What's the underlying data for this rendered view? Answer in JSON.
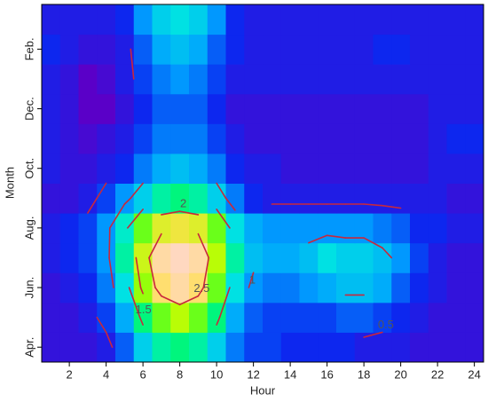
{
  "chart_data": {
    "type": "heatmap",
    "x_label": "Hour",
    "y_label": "Month",
    "x": [
      1,
      2,
      3,
      4,
      5,
      6,
      7,
      8,
      9,
      10,
      11,
      12,
      13,
      14,
      15,
      16,
      17,
      18,
      19,
      20,
      21,
      22,
      23,
      24
    ],
    "xlim": [
      0.5,
      24.5
    ],
    "xticks": [
      2,
      4,
      6,
      8,
      10,
      12,
      14,
      16,
      18,
      20,
      22,
      24
    ],
    "categories": [
      "Apr.",
      null,
      "Jun.",
      null,
      "Aug.",
      null,
      "Oct.",
      null,
      "Dec.",
      null,
      "Feb.",
      null
    ],
    "values": [
      [
        0.3,
        0.3,
        0.3,
        0.4,
        0.7,
        1.2,
        1.5,
        1.6,
        1.5,
        1.2,
        0.8,
        0.6,
        0.6,
        0.5,
        0.5,
        0.5,
        0.5,
        0.4,
        0.4,
        0.4,
        0.3,
        0.3,
        0.3,
        0.3
      ],
      [
        0.3,
        0.3,
        0.4,
        0.6,
        1.0,
        1.6,
        2.0,
        2.2,
        2.0,
        1.6,
        1.0,
        0.7,
        0.6,
        0.6,
        0.6,
        0.6,
        0.7,
        0.7,
        0.6,
        0.5,
        0.4,
        0.3,
        0.3,
        0.3
      ],
      [
        0.3,
        0.4,
        0.5,
        0.8,
        1.3,
        2.1,
        2.7,
        2.9,
        2.7,
        2.0,
        1.3,
        0.9,
        0.8,
        0.8,
        0.9,
        1.0,
        1.1,
        1.1,
        1.0,
        0.7,
        0.5,
        0.4,
        0.3,
        0.3
      ],
      [
        0.4,
        0.5,
        0.6,
        0.9,
        1.5,
        2.3,
        2.9,
        3.0,
        2.9,
        2.2,
        1.5,
        1.1,
        1.0,
        1.0,
        1.1,
        1.3,
        1.2,
        1.2,
        1.1,
        0.9,
        0.6,
        0.4,
        0.3,
        0.3
      ],
      [
        0.4,
        0.5,
        0.6,
        0.9,
        1.4,
        2.0,
        2.4,
        2.5,
        2.4,
        2.0,
        1.3,
        1.0,
        0.9,
        0.9,
        0.9,
        0.9,
        0.9,
        0.9,
        0.8,
        0.7,
        0.5,
        0.5,
        0.4,
        0.4
      ],
      [
        0.3,
        0.3,
        0.4,
        0.6,
        0.9,
        1.2,
        1.5,
        1.6,
        1.5,
        1.2,
        0.8,
        0.5,
        0.4,
        0.4,
        0.4,
        0.4,
        0.4,
        0.4,
        0.4,
        0.4,
        0.4,
        0.4,
        0.3,
        0.3
      ],
      [
        0.4,
        0.3,
        0.3,
        0.4,
        0.5,
        0.8,
        1.0,
        1.1,
        1.0,
        0.8,
        0.5,
        0.4,
        0.4,
        0.3,
        0.3,
        0.3,
        0.3,
        0.3,
        0.3,
        0.3,
        0.3,
        0.4,
        0.4,
        0.4
      ],
      [
        0.4,
        0.3,
        0.2,
        0.3,
        0.4,
        0.6,
        0.8,
        0.8,
        0.8,
        0.6,
        0.4,
        0.3,
        0.3,
        0.3,
        0.3,
        0.3,
        0.3,
        0.3,
        0.3,
        0.3,
        0.3,
        0.4,
        0.5,
        0.5
      ],
      [
        0.4,
        0.3,
        0.1,
        0.1,
        0.3,
        0.5,
        0.7,
        0.7,
        0.7,
        0.5,
        0.3,
        0.3,
        0.3,
        0.3,
        0.3,
        0.3,
        0.3,
        0.3,
        0.3,
        0.3,
        0.3,
        0.4,
        0.4,
        0.4
      ],
      [
        0.4,
        0.3,
        0.1,
        0.2,
        0.4,
        0.6,
        0.8,
        0.9,
        0.8,
        0.6,
        0.4,
        0.4,
        0.4,
        0.4,
        0.4,
        0.4,
        0.4,
        0.4,
        0.4,
        0.4,
        0.4,
        0.4,
        0.4,
        0.4
      ],
      [
        0.5,
        0.4,
        0.3,
        0.3,
        0.4,
        0.7,
        1.0,
        1.1,
        1.0,
        0.7,
        0.5,
        0.4,
        0.4,
        0.4,
        0.4,
        0.4,
        0.4,
        0.4,
        0.5,
        0.5,
        0.4,
        0.4,
        0.4,
        0.4
      ],
      [
        0.4,
        0.4,
        0.4,
        0.4,
        0.5,
        0.9,
        1.2,
        1.3,
        1.2,
        0.9,
        0.5,
        0.4,
        0.4,
        0.4,
        0.4,
        0.4,
        0.4,
        0.4,
        0.4,
        0.4,
        0.4,
        0.4,
        0.4,
        0.4
      ]
    ],
    "colors": [
      "#5a00c8",
      "#0a28f0",
      "#00a0ff",
      "#00e8e0",
      "#00ff40",
      "#b4ff00",
      "#ffe050",
      "#ffd8c0"
    ],
    "contour_levels": [
      0.5,
      1,
      1.5,
      2,
      2.5
    ],
    "contour_color": "#c8283c"
  }
}
